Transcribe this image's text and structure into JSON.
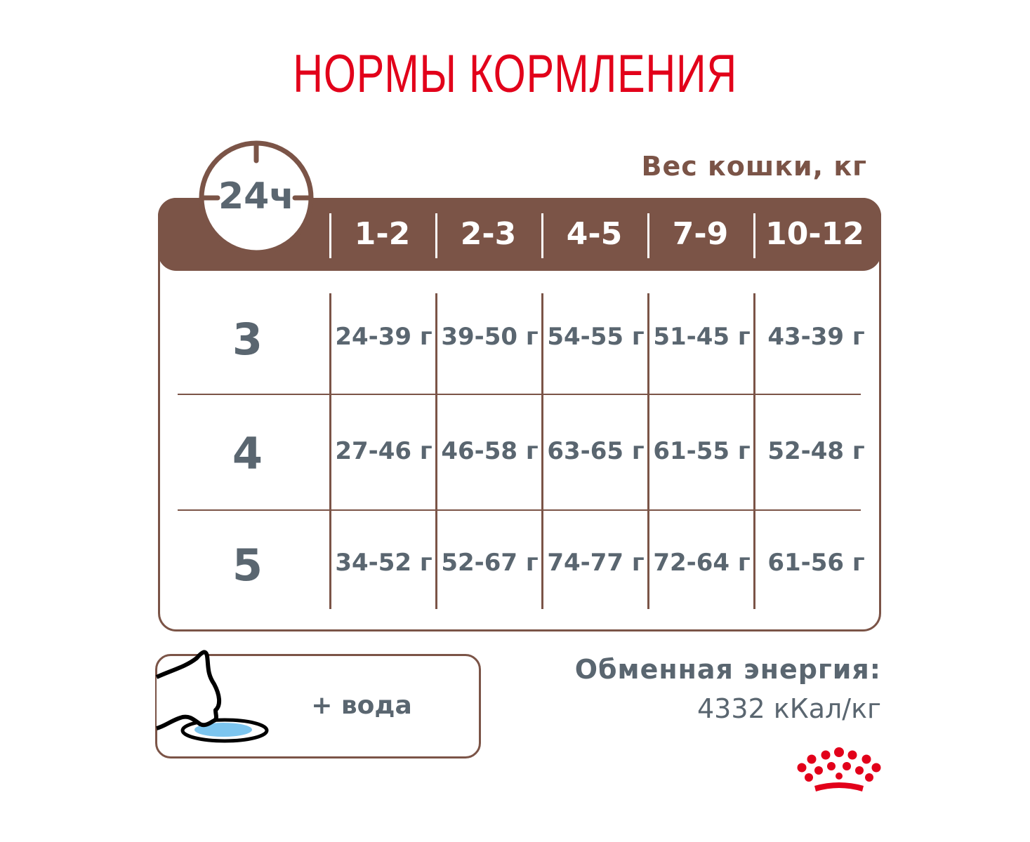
{
  "title": "НОРМЫ КОРМЛЕНИЯ",
  "weight_label": "Вес кошки, кг",
  "clock_label": "24ч",
  "columns": [
    "1-2",
    "2-3",
    "4-5",
    "7-9",
    "10-12"
  ],
  "rows": [
    {
      "label": "3",
      "values": [
        "24-39 г",
        "39-50 г",
        "54-55 г",
        "51-45 г",
        "43-39 г"
      ]
    },
    {
      "label": "4",
      "values": [
        "27-46 г",
        "46-58 г",
        "63-65 г",
        "61-55 г",
        "52-48 г"
      ]
    },
    {
      "label": "5",
      "values": [
        "34-52 г",
        "52-67 г",
        "74-77 г",
        "72-64 г",
        "61-56 г"
      ]
    }
  ],
  "water_label": "+ вода",
  "energy": {
    "title": "Обменная энергия:",
    "value": "4332 кКал/кг"
  },
  "colors": {
    "brand_red": "#e2001a",
    "brown": "#7b5447",
    "text_gray": "#5a6670",
    "water_blue": "#7cc5ef"
  }
}
